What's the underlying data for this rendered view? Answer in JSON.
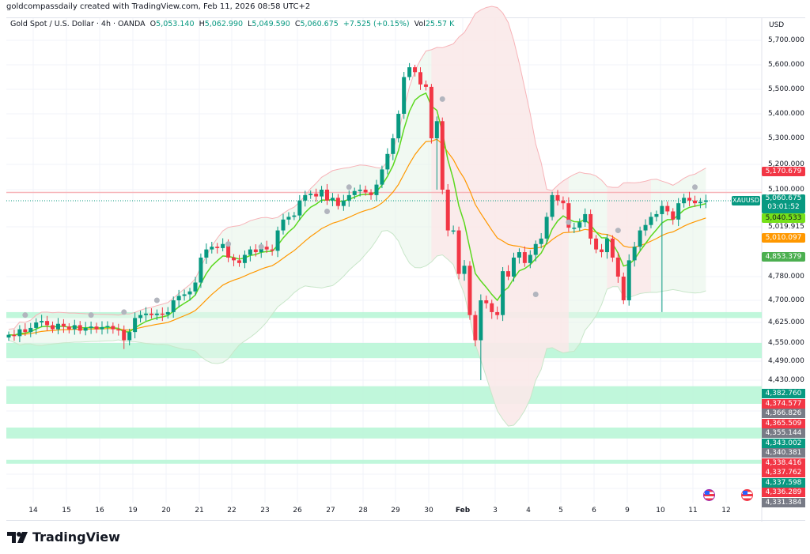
{
  "credit": "goldcompassdaily created with TradingView.com, Feb 11, 2026 08:58 UTC+2",
  "legend": {
    "symbol": "Gold Spot / U.S. Dollar · 4h · OANDA",
    "open_label": "O",
    "open": "5,053.140",
    "high_label": "H",
    "high": "5,062.990",
    "low_label": "L",
    "low": "5,049.590",
    "close_label": "C",
    "close": "5,060.675",
    "change": "+7.525 (+0.15%)",
    "vol_label": "Vol",
    "vol": "25.57 K"
  },
  "currency": "USD",
  "symbol_tag": "XAUUSD",
  "last_price": "5,060.675",
  "countdown": "03:01:52",
  "logo_text": "TradingView",
  "colors": {
    "up": "#089981",
    "down": "#f23645",
    "fast_ma": "#5bd81f",
    "slow_ma": "#ff9800",
    "zone": "#b9f6d7",
    "red_line": "#f7b3b8"
  },
  "chart_data": {
    "type": "candlestick",
    "timeframe": "4h",
    "price_ticks": [
      "5,700.000",
      "5,600.000",
      "5,500.000",
      "5,400.000",
      "5,300.000",
      "5,200.000",
      "5,100.000",
      "5,019.915",
      "4,780.000",
      "4,700.000",
      "4,625.000",
      "4,550.000",
      "4,490.000",
      "4,430.000"
    ],
    "price_tick_values": [
      5700,
      5600,
      5500,
      5400,
      5300,
      5200,
      5100,
      5019.915,
      4780,
      4700,
      4625,
      4550,
      4490,
      4430
    ],
    "time_labels": [
      "14",
      "15",
      "16",
      "19",
      "20",
      "21",
      "22",
      "23",
      "26",
      "27",
      "28",
      "29",
      "30",
      "Feb",
      "3",
      "4",
      "5",
      "6",
      "9",
      "10",
      "11",
      "12"
    ],
    "closes": [
      4580,
      4575,
      4600,
      4590,
      4605,
      4625,
      4630,
      4615,
      4600,
      4620,
      4610,
      4600,
      4615,
      4595,
      4605,
      4610,
      4600,
      4608,
      4612,
      4600,
      4598,
      4560,
      4590,
      4640,
      4650,
      4655,
      4650,
      4655,
      4652,
      4660,
      4700,
      4715,
      4720,
      4730,
      4760,
      4850,
      4880,
      4890,
      4885,
      4900,
      4850,
      4840,
      4830,
      4860,
      4880,
      4870,
      4890,
      4880,
      4875,
      4950,
      4990,
      5000,
      5005,
      5060,
      5080,
      5085,
      5075,
      5100,
      5060,
      5070,
      5040,
      5060,
      5080,
      5095,
      5100,
      5090,
      5080,
      5120,
      5180,
      5240,
      5300,
      5400,
      5550,
      5590,
      5570,
      5520,
      5510,
      5300,
      5370,
      5100,
      4950,
      4950,
      4790,
      4820,
      4650,
      4560,
      4700,
      4690,
      4660,
      4650,
      4800,
      4780,
      4850,
      4870,
      4830,
      4860,
      4900,
      4920,
      5000,
      5080,
      5060,
      5050,
      4960,
      4960,
      4980,
      5010,
      4920,
      4880,
      4870,
      4920,
      4850,
      4780,
      4700,
      4840,
      4890,
      4950,
      4970,
      5000,
      5010,
      5040,
      5020,
      4990,
      5050,
      5070,
      5060,
      5050,
      5055,
      5060.675
    ],
    "first_open": 4570,
    "notable_wicks": [
      {
        "index": 21,
        "low": 4530
      },
      {
        "index": 78,
        "low": 5100
      },
      {
        "index": 86,
        "low": 4430
      },
      {
        "index": 119,
        "low": 4660
      },
      {
        "index": 74,
        "high": 5600
      }
    ],
    "markers": [
      [
        3,
        4650
      ],
      [
        15,
        4650
      ],
      [
        21,
        4660
      ],
      [
        27,
        4700
      ],
      [
        40,
        4900
      ],
      [
        46,
        4890
      ],
      [
        62,
        5110
      ],
      [
        58,
        5020
      ],
      [
        79,
        5460
      ],
      [
        96,
        4720
      ],
      [
        102,
        4980
      ],
      [
        111,
        4950
      ],
      [
        125,
        5110
      ]
    ],
    "horizontal_line": 5090,
    "zones": [
      [
        4640,
        4660
      ],
      [
        4500,
        4550
      ],
      [
        4352,
        4410
      ],
      [
        4238,
        4274
      ],
      [
        4155,
        4168
      ]
    ],
    "indicators": [
      "fast moving average",
      "slow moving average",
      "bands"
    ],
    "price_tags": [
      {
        "value": "5,170.679",
        "color": "#f23645"
      },
      {
        "value": "5,040.533",
        "color": "#76e01a"
      },
      {
        "value": "5,010.097",
        "color": "#ff9800"
      },
      {
        "value": "4,853.379",
        "color": "#4caf50"
      }
    ],
    "stacked_tags": [
      {
        "value": "4,382.760",
        "color": "#089981"
      },
      {
        "value": "4,374.577",
        "color": "#f23645"
      },
      {
        "value": "4,366.826",
        "color": "#787b86"
      },
      {
        "value": "4,365.509",
        "color": "#f23645"
      },
      {
        "value": "4,355.144",
        "color": "#787b86"
      },
      {
        "value": "4,343.002",
        "color": "#089981"
      },
      {
        "value": "4,340.381",
        "color": "#787b86"
      },
      {
        "value": "4,338.416",
        "color": "#f23645"
      },
      {
        "value": "4,337.762",
        "color": "#f23645"
      },
      {
        "value": "4,337.598",
        "color": "#089981"
      },
      {
        "value": "4,336.289",
        "color": "#f23645"
      },
      {
        "value": "4,331.384",
        "color": "#787b86"
      }
    ]
  }
}
